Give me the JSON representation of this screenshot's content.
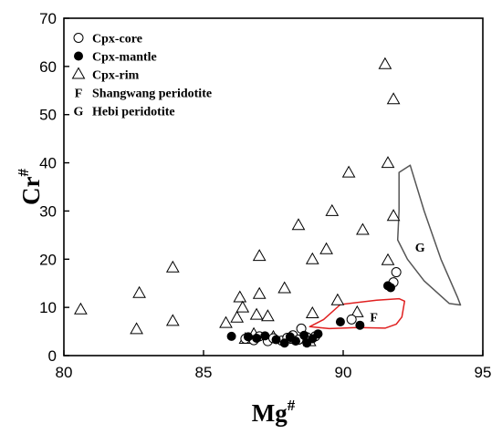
{
  "chart_data": {
    "type": "scatter",
    "xlabel": "Mg",
    "xlabel_sup": "#",
    "ylabel": "Cr",
    "ylabel_sup": "#",
    "xlim": [
      80,
      95
    ],
    "ylim": [
      0,
      70
    ],
    "xticks": [
      80,
      85,
      90,
      95
    ],
    "yticks": [
      0,
      10,
      20,
      30,
      40,
      50,
      60,
      70
    ],
    "grid": false,
    "legend_position": "top-left",
    "series": [
      {
        "name": "Cpx-core",
        "marker": "open-circle",
        "points": [
          [
            86.5,
            3.5
          ],
          [
            86.8,
            3.2
          ],
          [
            87.0,
            4.0
          ],
          [
            87.3,
            3.0
          ],
          [
            87.5,
            3.6
          ],
          [
            87.8,
            3.1
          ],
          [
            88.0,
            3.7
          ],
          [
            88.2,
            4.2
          ],
          [
            88.4,
            3.3
          ],
          [
            88.5,
            5.6
          ],
          [
            88.7,
            3.8
          ],
          [
            89.0,
            4.0
          ],
          [
            90.3,
            7.5
          ],
          [
            91.8,
            15.2
          ],
          [
            91.9,
            17.3
          ]
        ]
      },
      {
        "name": "Cpx-mantle",
        "marker": "filled-circle",
        "points": [
          [
            86.0,
            4.0
          ],
          [
            86.6,
            3.9
          ],
          [
            86.9,
            3.6
          ],
          [
            87.2,
            4.1
          ],
          [
            87.6,
            3.3
          ],
          [
            87.9,
            2.6
          ],
          [
            88.1,
            3.9
          ],
          [
            88.3,
            3.0
          ],
          [
            88.6,
            4.2
          ],
          [
            88.7,
            2.6
          ],
          [
            88.9,
            3.5
          ],
          [
            89.1,
            4.5
          ],
          [
            89.9,
            7.0
          ],
          [
            90.6,
            6.3
          ],
          [
            91.6,
            14.5
          ],
          [
            91.7,
            14.1
          ]
        ]
      },
      {
        "name": "Cpx-rim",
        "marker": "open-triangle",
        "points": [
          [
            80.6,
            9.6
          ],
          [
            82.7,
            13.0
          ],
          [
            82.6,
            5.5
          ],
          [
            83.9,
            18.3
          ],
          [
            83.9,
            7.2
          ],
          [
            85.8,
            6.8
          ],
          [
            86.2,
            7.9
          ],
          [
            86.3,
            12.1
          ],
          [
            86.4,
            10.0
          ],
          [
            86.5,
            3.5
          ],
          [
            86.8,
            4.5
          ],
          [
            86.9,
            8.5
          ],
          [
            87.0,
            20.7
          ],
          [
            87.0,
            12.8
          ],
          [
            87.3,
            8.2
          ],
          [
            87.5,
            3.9
          ],
          [
            87.9,
            14.0
          ],
          [
            88.3,
            3.5
          ],
          [
            88.4,
            27.1
          ],
          [
            88.8,
            3.0
          ],
          [
            88.9,
            8.8
          ],
          [
            88.9,
            20.0
          ],
          [
            89.4,
            22.1
          ],
          [
            89.6,
            30.0
          ],
          [
            89.8,
            11.5
          ],
          [
            90.2,
            38.0
          ],
          [
            90.5,
            9.0
          ],
          [
            90.7,
            26.1
          ],
          [
            91.5,
            60.5
          ],
          [
            91.6,
            40.0
          ],
          [
            91.6,
            19.8
          ],
          [
            91.8,
            53.2
          ],
          [
            91.8,
            29.0
          ]
        ]
      }
    ],
    "legend_extra": [
      {
        "symbol": "F",
        "label": "Shangwang peridotite"
      },
      {
        "symbol": "G",
        "label": "Hebi peridotite"
      }
    ],
    "fields": [
      {
        "label": "F",
        "color": "#e02020",
        "label_at": [
          91.1,
          8.0
        ],
        "outline": [
          [
            88.8,
            6.0
          ],
          [
            89.3,
            7.5
          ],
          [
            89.9,
            10.6
          ],
          [
            91.2,
            11.5
          ],
          [
            92.0,
            11.8
          ],
          [
            92.2,
            11.3
          ],
          [
            92.1,
            8.0
          ],
          [
            91.9,
            6.5
          ],
          [
            91.5,
            5.7
          ],
          [
            90.5,
            5.8
          ],
          [
            89.5,
            5.6
          ],
          [
            88.8,
            6.0
          ]
        ]
      },
      {
        "label": "G",
        "color": "#555555",
        "label_at": [
          92.75,
          22.5
        ],
        "outline": [
          [
            92.0,
            38.0
          ],
          [
            92.4,
            39.5
          ],
          [
            92.9,
            30.0
          ],
          [
            93.5,
            20.0
          ],
          [
            94.1,
            12.0
          ],
          [
            94.2,
            10.5
          ],
          [
            93.8,
            10.8
          ],
          [
            92.9,
            15.5
          ],
          [
            92.3,
            20.0
          ],
          [
            91.95,
            24.0
          ],
          [
            92.0,
            30.0
          ],
          [
            92.0,
            38.0
          ]
        ]
      }
    ]
  }
}
